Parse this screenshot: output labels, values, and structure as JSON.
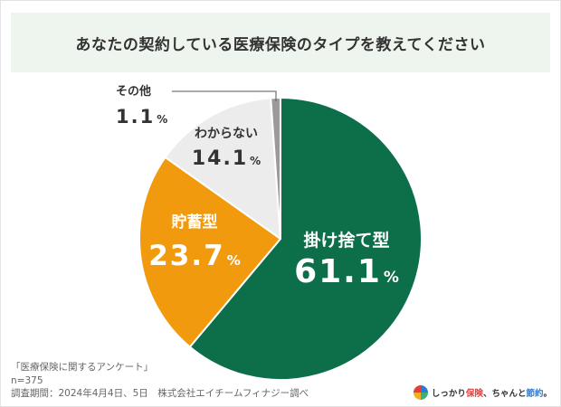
{
  "title": "あなたの契約している医療保険のタイプを教えてください",
  "chart_data": {
    "type": "pie",
    "title": "あなたの契約している医療保険のタイプを教えてください",
    "unit": "%",
    "slices": [
      {
        "label": "掛け捨て型",
        "value": 61.1,
        "color": "#0d6e4a",
        "text_color": "#ffffff"
      },
      {
        "label": "貯蓄型",
        "value": 23.7,
        "color": "#f29a0e",
        "text_color": "#ffffff"
      },
      {
        "label": "わからない",
        "value": 14.1,
        "color": "#ececec",
        "text_color": "#333333"
      },
      {
        "label": "その他",
        "value": 1.1,
        "color": "#9a9a9a",
        "text_color": "#333333"
      }
    ],
    "start_angle_deg": 0,
    "direction": "clockwise"
  },
  "footnote": {
    "survey_name": "「医療保険に関するアンケート」",
    "sample": "n=375",
    "period": "調査期間：2024年4月4日、5日　株式会社エイチームフィナジー調べ"
  },
  "brand": {
    "text_a": "しっかり",
    "text_b": "保険",
    "text_c": "、ちゃんと",
    "text_d": "節約",
    "text_e": "。",
    "logo_colors": [
      "#e33d3d",
      "#2a7bd4",
      "#f2b01e",
      "#3bb07a"
    ]
  }
}
